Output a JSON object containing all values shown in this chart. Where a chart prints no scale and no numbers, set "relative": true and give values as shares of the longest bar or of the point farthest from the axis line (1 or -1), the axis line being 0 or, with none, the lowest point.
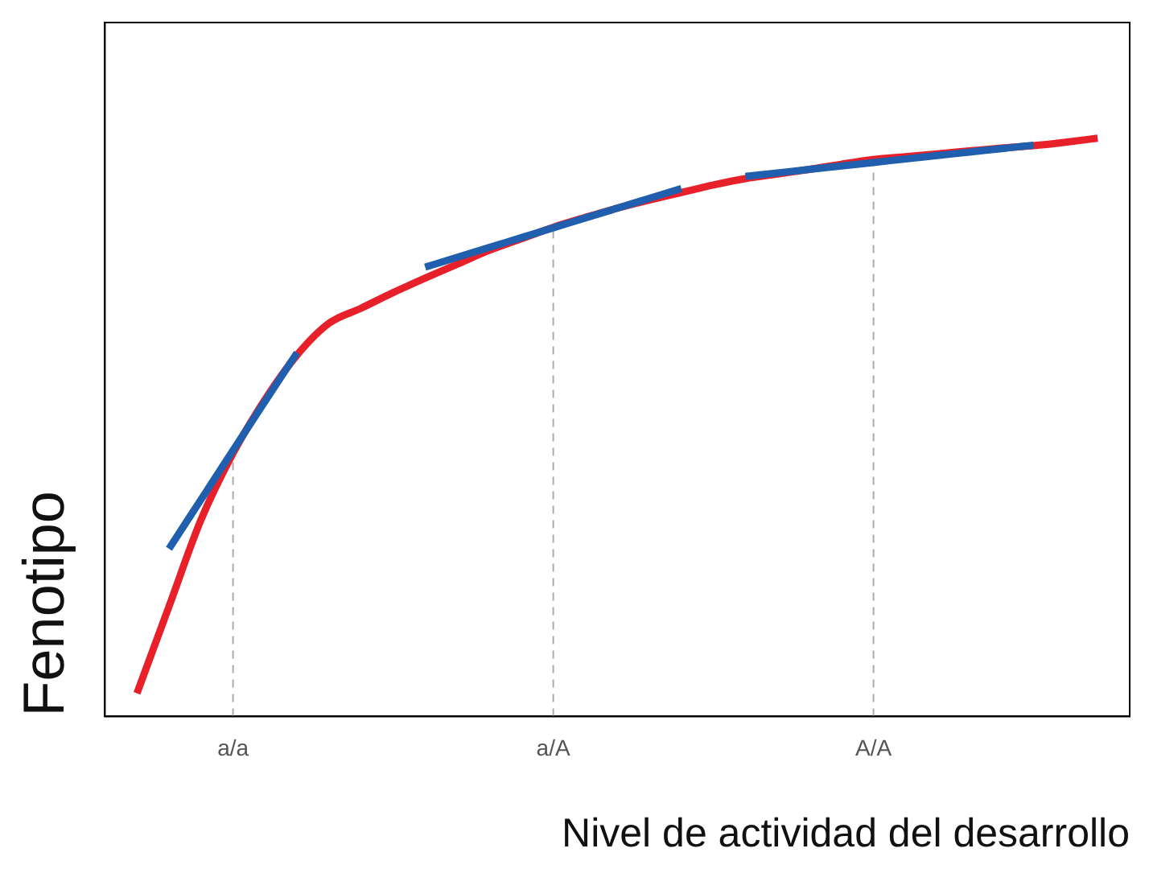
{
  "chart_data": {
    "type": "line",
    "relative": true,
    "xlabel": "Nivel de actividad del desarrollo",
    "ylabel": "Fenotipo",
    "categories": [
      null,
      null,
      null,
      null,
      "a/a",
      null,
      null,
      null,
      null,
      null,
      null,
      null,
      null,
      null,
      "a/A",
      null,
      null,
      null,
      null,
      null,
      null,
      null,
      null,
      null,
      "A/A",
      null,
      null,
      null,
      null,
      null,
      null,
      null,
      null
    ],
    "series": [
      {
        "color": "#e8202a",
        "values": [
          null,
          0.04,
          0.19,
          0.34,
          0.455,
          0.548,
          0.625,
          0.68,
          0.706,
          0.733,
          0.758,
          0.782,
          0.806,
          0.826,
          0.846,
          0.863,
          0.879,
          0.893,
          0.906,
          0.919,
          0.93,
          0.938,
          0.946,
          0.955,
          0.963,
          0.968,
          0.973,
          0.978,
          0.983,
          0.987,
          0.993,
          1.0,
          null
        ]
      },
      {
        "color": "#1f5fae",
        "values": [
          null,
          null,
          0.29,
          0.375,
          0.46,
          0.545,
          0.629,
          null,
          null,
          null,
          null,
          null,
          null,
          null,
          null,
          null,
          null,
          null,
          null,
          null,
          null,
          null,
          null,
          null,
          null,
          null,
          null,
          null,
          null,
          null,
          null,
          null,
          null
        ]
      },
      {
        "color": "#1f5fae",
        "values": [
          null,
          null,
          null,
          null,
          null,
          null,
          null,
          null,
          null,
          null,
          0.777,
          0.794,
          0.811,
          0.828,
          0.845,
          0.862,
          0.879,
          0.896,
          0.913,
          null,
          null,
          null,
          null,
          null,
          null,
          null,
          null,
          null,
          null,
          null,
          null,
          null,
          null
        ]
      },
      {
        "color": "#1f5fae",
        "values": [
          null,
          null,
          null,
          null,
          null,
          null,
          null,
          null,
          null,
          null,
          null,
          null,
          null,
          null,
          null,
          null,
          null,
          null,
          null,
          null,
          0.934,
          0.94,
          0.946,
          0.952,
          0.958,
          0.964,
          0.97,
          0.976,
          0.982,
          0.988,
          null,
          null,
          null
        ]
      }
    ],
    "ref_lines": [
      {
        "axis": "x",
        "value": "a/a",
        "color": "#aaaaaa",
        "line_style": "dashed"
      },
      {
        "axis": "x",
        "value": "a/A",
        "color": "#aaaaaa",
        "line_style": "dashed"
      },
      {
        "axis": "x",
        "value": "A/A",
        "color": "#aaaaaa",
        "line_style": "dashed"
      }
    ],
    "grid": false,
    "legend": false,
    "marker": "none",
    "line_style": "solid"
  }
}
